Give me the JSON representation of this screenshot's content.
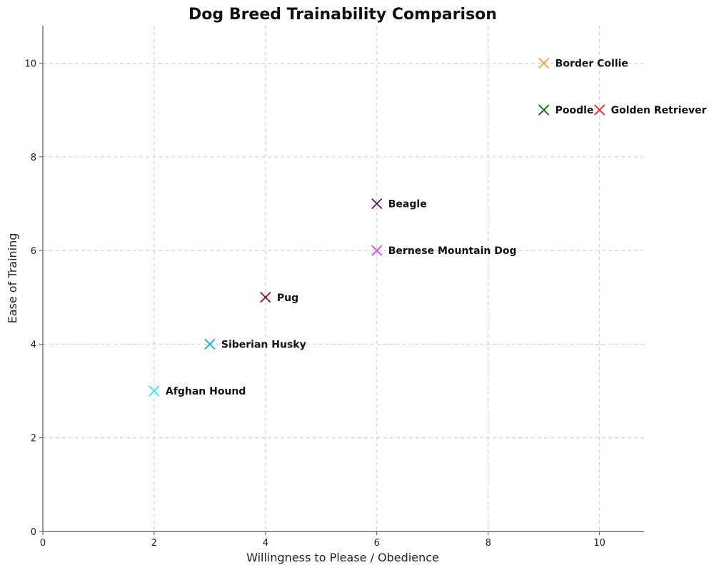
{
  "chart_data": {
    "type": "scatter",
    "title": "Dog Breed Trainability Comparison",
    "xlabel": "Willingness to Please / Obedience",
    "ylabel": "Ease of Training",
    "xlim": [
      0,
      10.8
    ],
    "ylim": [
      0,
      10.8
    ],
    "xticks": [
      0,
      2,
      4,
      6,
      8,
      10
    ],
    "yticks": [
      0,
      2,
      4,
      6,
      8,
      10
    ],
    "grid": true,
    "marker": "x",
    "points": [
      {
        "label": "Border Collie",
        "x": 9,
        "y": 10,
        "color": "#f7a234"
      },
      {
        "label": "Poodle",
        "x": 9,
        "y": 9,
        "color": "#0a6b0a"
      },
      {
        "label": "Golden Retriever",
        "x": 10,
        "y": 9,
        "color": "#e8201f"
      },
      {
        "label": "Beagle",
        "x": 6,
        "y": 7,
        "color": "#5a1560"
      },
      {
        "label": "Bernese Mountain Dog",
        "x": 6,
        "y": 6,
        "color": "#e73ee6"
      },
      {
        "label": "Pug",
        "x": 4,
        "y": 5,
        "color": "#9b0d0d"
      },
      {
        "label": "Siberian Husky",
        "x": 3,
        "y": 4,
        "color": "#1ba4e4"
      },
      {
        "label": "Afghan Hound",
        "x": 2,
        "y": 3,
        "color": "#3ee6f0"
      }
    ]
  }
}
